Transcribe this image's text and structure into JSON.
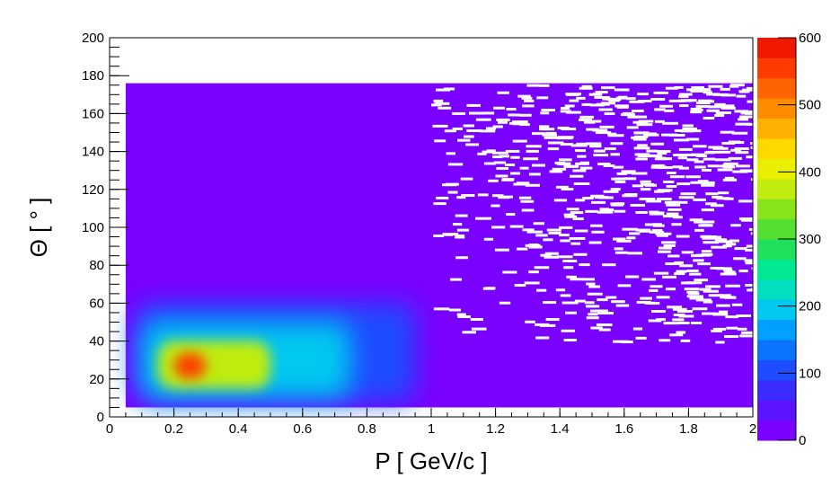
{
  "chart_data": {
    "type": "heatmap",
    "title": "",
    "xlabel": "P [ GeV/c ]",
    "ylabel": "Θ [ ° ]",
    "xlim": [
      0,
      2
    ],
    "ylim": [
      0,
      200
    ],
    "x_ticks": [
      "0",
      "0.2",
      "0.4",
      "0.6",
      "0.8",
      "1",
      "1.2",
      "1.4",
      "1.6",
      "1.8",
      "2"
    ],
    "y_ticks": [
      "0",
      "20",
      "40",
      "60",
      "80",
      "100",
      "120",
      "140",
      "160",
      "180",
      "200"
    ],
    "z_range": [
      0,
      600
    ],
    "z_ticks": [
      "0",
      "100",
      "200",
      "300",
      "400",
      "500",
      "600"
    ],
    "colorbar_colors": [
      "#7a00ff",
      "#5b14ff",
      "#3a2cff",
      "#1e4cff",
      "#0a74ff",
      "#00a0ff",
      "#00c8f0",
      "#00e0c0",
      "#00e890",
      "#1ee05a",
      "#54e030",
      "#8ae41c",
      "#c0ec10",
      "#e8f000",
      "#ffd800",
      "#ffb000",
      "#ff8c00",
      "#ff6400",
      "#ff3c00",
      "#f01800"
    ],
    "regions": [
      {
        "x_range": [
          0.05,
          2.0
        ],
        "y_range": [
          5,
          176
        ],
        "level": 3
      },
      {
        "x_range": [
          0.08,
          0.95
        ],
        "y_range": [
          8,
          60
        ],
        "level": 90
      },
      {
        "x_range": [
          0.1,
          0.75
        ],
        "y_range": [
          10,
          50
        ],
        "level": 200
      },
      {
        "x_range": [
          0.15,
          0.5
        ],
        "y_range": [
          15,
          40
        ],
        "level": 380
      },
      {
        "x_range": [
          0.2,
          0.3
        ],
        "y_range": [
          20,
          34
        ],
        "level": 560
      }
    ],
    "grid": false,
    "legend": "colorbar-right"
  }
}
